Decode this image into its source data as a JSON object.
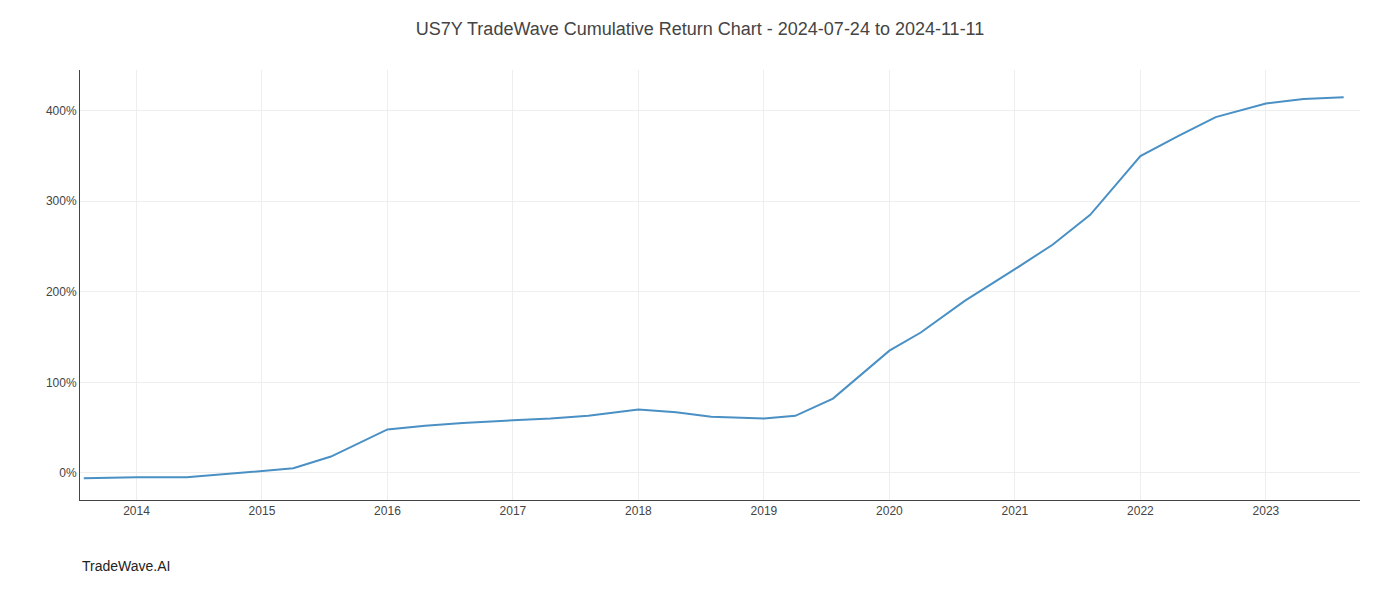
{
  "chart_data": {
    "type": "line",
    "title": "US7Y TradeWave Cumulative Return Chart - 2024-07-24 to 2024-11-11",
    "x": [
      2013.58,
      2014.0,
      2014.4,
      2015.0,
      2015.25,
      2015.55,
      2016.0,
      2016.3,
      2016.6,
      2017.0,
      2017.3,
      2017.6,
      2018.0,
      2018.3,
      2018.58,
      2019.0,
      2019.25,
      2019.55,
      2020.0,
      2020.25,
      2020.6,
      2021.0,
      2021.3,
      2021.6,
      2022.0,
      2022.3,
      2022.6,
      2023.0,
      2023.3,
      2023.62
    ],
    "values": [
      -6,
      -5,
      -5,
      2,
      5,
      18,
      48,
      52,
      55,
      58,
      60,
      63,
      70,
      67,
      62,
      60,
      63,
      82,
      135,
      155,
      190,
      225,
      252,
      285,
      350,
      372,
      393,
      408,
      413,
      415
    ],
    "color": "#4a90c4",
    "xlim": [
      2013.55,
      2023.75
    ],
    "ylim": [
      -30,
      445
    ],
    "xticks": [
      2014,
      2015,
      2016,
      2017,
      2018,
      2019,
      2020,
      2021,
      2022,
      2023
    ],
    "yticks": [
      {
        "value": 0,
        "label": "0%"
      },
      {
        "value": 100,
        "label": "100%"
      },
      {
        "value": 200,
        "label": "200%"
      },
      {
        "value": 300,
        "label": "300%"
      },
      {
        "value": 400,
        "label": "400%"
      }
    ],
    "grid": true,
    "annotations": [
      "TradeWave.AI"
    ]
  }
}
